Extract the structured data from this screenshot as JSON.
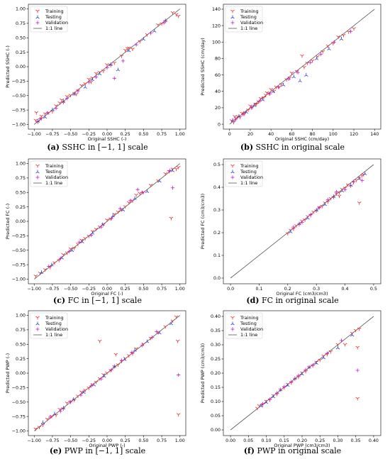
{
  "series_colors": {
    "Training": "#f0262a",
    "Testing": "#2d38d8",
    "Validation": "#c41ccc",
    "line": "#555555"
  },
  "captions": [
    {
      "letter": "(a)",
      "text": " SSHC in [−1, 1] scale"
    },
    {
      "letter": "(b)",
      "text": " SSHC in original scale"
    },
    {
      "letter": "(c)",
      "text": " FC in [−1, 1] scale"
    },
    {
      "letter": "(d)",
      "text": " FC in original scale"
    },
    {
      "letter": "(e)",
      "text": " PWP in [−1, 1] scale"
    },
    {
      "letter": "(f)",
      "text": " PWP in original scale"
    }
  ],
  "chart_data": [
    {
      "type": "scatter",
      "xlabel": "Original SSHC (-)",
      "ylabel": "Predicted SSHC (-)",
      "xlim": [
        -1.08,
        1.08
      ],
      "ylim": [
        -1.08,
        1.08
      ],
      "xticks": [
        -1.0,
        -0.75,
        -0.5,
        -0.25,
        0.0,
        0.25,
        0.5,
        0.75,
        1.0
      ],
      "yticks": [
        -1.0,
        -0.75,
        -0.5,
        -0.25,
        0.0,
        0.25,
        0.5,
        0.75,
        1.0
      ],
      "tick_decimals": 2,
      "legend": [
        "Training",
        "Testing",
        "Validation",
        "1:1 line"
      ],
      "legend_position": "top-left",
      "identity_line": [
        -1.0,
        1.0
      ],
      "series": [
        {
          "name": "Training",
          "x": [
            -0.98,
            -0.95,
            -0.9,
            -0.85,
            -0.8,
            -0.75,
            -0.7,
            -0.65,
            -0.6,
            -0.55,
            -0.5,
            -0.45,
            -0.4,
            -0.35,
            -0.3,
            -0.25,
            -0.2,
            -0.15,
            -0.1,
            -0.05,
            0.0,
            0.05,
            0.1,
            0.2,
            0.25,
            0.3,
            0.35,
            0.45,
            0.55,
            0.7,
            0.8,
            0.9,
            0.95,
            0.98,
            -0.97,
            -0.9,
            -0.62,
            -0.42,
            -0.22,
            0.28,
            0.75
          ],
          "y": [
            -0.93,
            -0.96,
            -0.9,
            -0.82,
            -0.8,
            -0.78,
            -0.68,
            -0.63,
            -0.62,
            -0.52,
            -0.5,
            -0.47,
            -0.42,
            -0.33,
            -0.3,
            -0.22,
            -0.2,
            -0.12,
            -0.1,
            -0.08,
            0.03,
            0.02,
            0.06,
            0.18,
            0.28,
            0.32,
            0.3,
            0.43,
            0.55,
            0.72,
            0.78,
            0.93,
            0.9,
            0.87,
            -0.8,
            -0.86,
            -0.58,
            -0.48,
            -0.27,
            0.31,
            0.74
          ]
        },
        {
          "name": "Testing",
          "x": [
            -0.95,
            -0.85,
            -0.75,
            -0.6,
            -0.45,
            -0.3,
            -0.2,
            -0.1,
            0.05,
            0.15,
            0.3,
            0.5,
            0.65,
            0.8
          ],
          "y": [
            -0.94,
            -0.87,
            -0.74,
            -0.6,
            -0.47,
            -0.35,
            -0.22,
            -0.12,
            0.04,
            -0.05,
            0.28,
            0.48,
            0.62,
            0.8
          ]
        },
        {
          "name": "Validation",
          "x": [
            -0.92,
            -0.82,
            -0.7,
            -0.55,
            -0.4,
            -0.25,
            -0.15,
            0.0,
            0.1,
            0.22,
            0.4,
            0.6,
            0.78
          ],
          "y": [
            -0.9,
            -0.8,
            -0.72,
            -0.55,
            -0.42,
            -0.27,
            -0.18,
            -0.02,
            -0.2,
            0.1,
            0.38,
            0.58,
            0.76
          ]
        }
      ]
    },
    {
      "type": "scatter",
      "xlabel": "Original SSHC (cm/day)",
      "ylabel": "Predicted SSHC (cm/day)",
      "xlim": [
        -6,
        146
      ],
      "ylim": [
        -6,
        146
      ],
      "xticks": [
        0,
        20,
        40,
        60,
        80,
        100,
        120,
        140
      ],
      "yticks": [
        0,
        20,
        40,
        60,
        80,
        100,
        120,
        140
      ],
      "tick_decimals": 0,
      "legend": [
        "Training",
        "Testing",
        "Validation",
        "1:1 line"
      ],
      "legend_position": "top-left",
      "identity_line": [
        0,
        140
      ],
      "series": [
        {
          "name": "Training",
          "x": [
            2,
            4,
            6,
            8,
            10,
            12,
            15,
            18,
            20,
            22,
            25,
            28,
            30,
            33,
            35,
            38,
            40,
            43,
            45,
            50,
            55,
            58,
            60,
            65,
            70,
            75,
            80,
            85,
            90,
            95,
            100,
            105,
            110,
            115,
            120,
            5,
            14,
            26,
            36,
            48,
            72
          ],
          "y": [
            4,
            2,
            7,
            9,
            8,
            13,
            14,
            17,
            22,
            20,
            24,
            27,
            31,
            32,
            35,
            37,
            42,
            40,
            45,
            48,
            54,
            56,
            62,
            64,
            83,
            74,
            77,
            82,
            88,
            95,
            98,
            106,
            108,
            112,
            116,
            9,
            12,
            24,
            38,
            45,
            69
          ]
        },
        {
          "name": "Testing",
          "x": [
            3,
            9,
            16,
            24,
            32,
            42,
            52,
            62,
            68,
            74,
            84,
            96,
            108
          ],
          "y": [
            5,
            10,
            15,
            23,
            30,
            40,
            48,
            58,
            53,
            60,
            80,
            92,
            104
          ]
        },
        {
          "name": "Validation",
          "x": [
            6,
            13,
            21,
            29,
            39,
            47,
            57,
            66,
            78,
            88,
            101,
            117
          ],
          "y": [
            6,
            12,
            20,
            28,
            37,
            45,
            55,
            63,
            75,
            85,
            100,
            113
          ]
        }
      ]
    },
    {
      "type": "scatter",
      "xlabel": "Original FC (-)",
      "ylabel": "Predicted FC (-)",
      "xlim": [
        -1.08,
        1.08
      ],
      "ylim": [
        -1.08,
        1.08
      ],
      "xticks": [
        -1.0,
        -0.75,
        -0.5,
        -0.25,
        0.0,
        0.25,
        0.5,
        0.75,
        1.0
      ],
      "yticks": [
        -1.0,
        -0.75,
        -0.5,
        -0.25,
        0.0,
        0.25,
        0.5,
        0.75,
        1.0
      ],
      "tick_decimals": 2,
      "legend": [
        "Training",
        "Testing",
        "Validation",
        "1:1 line"
      ],
      "legend_position": "top-left",
      "identity_line": [
        -1.0,
        1.0
      ],
      "series": [
        {
          "name": "Training",
          "x": [
            -0.98,
            -0.92,
            -0.85,
            -0.78,
            -0.72,
            -0.66,
            -0.6,
            -0.55,
            -0.5,
            -0.45,
            -0.4,
            -0.35,
            -0.3,
            -0.25,
            -0.2,
            -0.15,
            -0.1,
            -0.05,
            0.0,
            0.05,
            0.1,
            0.15,
            0.2,
            0.25,
            0.3,
            0.35,
            0.4,
            0.45,
            0.5,
            0.6,
            0.7,
            0.8,
            0.85,
            0.88,
            0.9,
            0.95,
            0.98
          ],
          "y": [
            -0.95,
            -0.9,
            -0.84,
            -0.8,
            -0.72,
            -0.68,
            -0.58,
            -0.55,
            -0.48,
            -0.47,
            -0.4,
            -0.33,
            -0.3,
            -0.26,
            -0.18,
            -0.14,
            -0.1,
            -0.06,
            0.02,
            0.04,
            0.12,
            0.16,
            0.2,
            0.25,
            0.32,
            0.35,
            0.45,
            0.48,
            0.5,
            0.62,
            0.7,
            0.82,
            0.86,
            0.05,
            0.9,
            0.9,
            0.93
          ]
        },
        {
          "name": "Testing",
          "x": [
            -0.9,
            -0.76,
            -0.62,
            -0.48,
            -0.34,
            -0.2,
            -0.06,
            0.08,
            0.22,
            0.38,
            0.55,
            0.72,
            0.9
          ],
          "y": [
            -0.88,
            -0.75,
            -0.63,
            -0.5,
            -0.35,
            -0.2,
            -0.05,
            0.1,
            0.2,
            0.4,
            0.52,
            0.7,
            0.88
          ]
        },
        {
          "name": "Validation",
          "x": [
            -0.8,
            -0.64,
            -0.52,
            -0.38,
            -0.22,
            -0.08,
            0.06,
            0.18,
            0.32,
            0.42,
            0.48,
            0.86,
            0.9
          ],
          "y": [
            -0.78,
            -0.64,
            -0.52,
            -0.36,
            -0.24,
            -0.1,
            0.05,
            0.22,
            0.36,
            0.55,
            0.5,
            0.88,
            0.58
          ]
        }
      ]
    },
    {
      "type": "scatter",
      "xlabel": "Original FC (cm3/cm3)",
      "ylabel": "Predicted FC (cm3/cm3)",
      "xlim": [
        -0.025,
        0.525
      ],
      "ylim": [
        -0.025,
        0.525
      ],
      "xticks": [
        0.0,
        0.1,
        0.2,
        0.3,
        0.4,
        0.5
      ],
      "yticks": [
        0.0,
        0.1,
        0.2,
        0.3,
        0.4,
        0.5
      ],
      "tick_decimals": 1,
      "legend": [
        "Training",
        "Testing",
        "Validation",
        "1:1 line"
      ],
      "legend_position": "top-left",
      "identity_line": [
        0.0,
        0.5
      ],
      "series": [
        {
          "name": "Training",
          "x": [
            0.2,
            0.21,
            0.22,
            0.23,
            0.24,
            0.25,
            0.26,
            0.27,
            0.28,
            0.29,
            0.3,
            0.31,
            0.32,
            0.33,
            0.34,
            0.35,
            0.36,
            0.37,
            0.38,
            0.39,
            0.4,
            0.41,
            0.42,
            0.43,
            0.44,
            0.45,
            0.46,
            0.465,
            0.45,
            0.38
          ],
          "y": [
            0.195,
            0.21,
            0.215,
            0.23,
            0.235,
            0.25,
            0.255,
            0.27,
            0.275,
            0.29,
            0.295,
            0.31,
            0.315,
            0.33,
            0.335,
            0.35,
            0.355,
            0.37,
            0.375,
            0.39,
            0.395,
            0.41,
            0.405,
            0.42,
            0.43,
            0.44,
            0.45,
            0.455,
            0.33,
            0.36
          ]
        },
        {
          "name": "Testing",
          "x": [
            0.21,
            0.24,
            0.27,
            0.3,
            0.33,
            0.36,
            0.39,
            0.42,
            0.45,
            0.47
          ],
          "y": [
            0.205,
            0.24,
            0.265,
            0.3,
            0.325,
            0.36,
            0.385,
            0.41,
            0.44,
            0.46
          ]
        },
        {
          "name": "Validation",
          "x": [
            0.22,
            0.25,
            0.28,
            0.31,
            0.34,
            0.37,
            0.4,
            0.43,
            0.46
          ],
          "y": [
            0.225,
            0.245,
            0.28,
            0.31,
            0.345,
            0.38,
            0.39,
            0.425,
            0.43
          ]
        }
      ]
    },
    {
      "type": "scatter",
      "xlabel": "Original PWP (-)",
      "ylabel": "Predicted PWP (-)",
      "xlim": [
        -1.08,
        1.08
      ],
      "ylim": [
        -1.08,
        1.08
      ],
      "xticks": [
        -1.0,
        -0.75,
        -0.5,
        -0.25,
        0.0,
        0.25,
        0.5,
        0.75,
        1.0
      ],
      "yticks": [
        -1.0,
        -0.75,
        -0.5,
        -0.25,
        0.0,
        0.25,
        0.5,
        0.75,
        1.0
      ],
      "tick_decimals": 2,
      "legend": [
        "Training",
        "Testing",
        "Validation",
        "1:1 line"
      ],
      "legend_position": "top-left",
      "identity_line": [
        -1.0,
        1.0
      ],
      "series": [
        {
          "name": "Training",
          "x": [
            -0.98,
            -0.93,
            -0.88,
            -0.82,
            -0.76,
            -0.7,
            -0.65,
            -0.6,
            -0.55,
            -0.5,
            -0.45,
            -0.4,
            -0.35,
            -0.3,
            -0.25,
            -0.2,
            -0.15,
            -0.1,
            -0.05,
            0.0,
            0.05,
            0.1,
            0.15,
            0.2,
            0.25,
            0.3,
            0.35,
            0.4,
            0.5,
            0.6,
            0.7,
            0.8,
            0.9,
            0.95,
            0.97,
            0.98,
            -0.1,
            0.12
          ],
          "y": [
            -0.97,
            -0.94,
            -0.9,
            -0.8,
            -0.75,
            -0.73,
            -0.63,
            -0.62,
            -0.52,
            -0.5,
            -0.47,
            -0.4,
            -0.33,
            -0.3,
            -0.26,
            -0.2,
            -0.16,
            -0.1,
            -0.03,
            0.0,
            0.04,
            0.11,
            0.14,
            0.2,
            0.25,
            0.3,
            0.33,
            0.42,
            0.5,
            0.6,
            0.7,
            0.8,
            0.9,
            0.97,
            0.55,
            -0.72,
            0.55,
            0.32
          ]
        },
        {
          "name": "Testing",
          "x": [
            -0.88,
            -0.72,
            -0.6,
            -0.46,
            -0.32,
            -0.18,
            -0.04,
            0.1,
            0.24,
            0.38,
            0.55,
            0.72,
            0.88
          ],
          "y": [
            -0.85,
            -0.7,
            -0.6,
            -0.45,
            -0.33,
            -0.2,
            -0.05,
            0.12,
            0.24,
            0.4,
            0.55,
            0.7,
            0.86
          ]
        },
        {
          "name": "Validation",
          "x": [
            -0.78,
            -0.64,
            -0.5,
            -0.36,
            -0.22,
            -0.08,
            0.06,
            0.2,
            0.34,
            0.48,
            0.62,
            0.68,
            0.98
          ],
          "y": [
            -0.76,
            -0.66,
            -0.5,
            -0.38,
            -0.22,
            -0.1,
            0.06,
            0.22,
            0.36,
            0.48,
            0.62,
            0.72,
            -0.03
          ]
        }
      ]
    },
    {
      "type": "scatter",
      "xlabel": "Original PWP (cm3/cm3)",
      "ylabel": "Predicted PWP (cm3/cm3)",
      "xlim": [
        -0.02,
        0.42
      ],
      "ylim": [
        -0.02,
        0.42
      ],
      "xticks": [
        0.0,
        0.05,
        0.1,
        0.15,
        0.2,
        0.25,
        0.3,
        0.35,
        0.4
      ],
      "yticks": [
        0.0,
        0.05,
        0.1,
        0.15,
        0.2,
        0.25,
        0.3,
        0.35,
        0.4
      ],
      "tick_decimals": 2,
      "legend": [
        "Training",
        "Testing",
        "Validation",
        "1:1 line"
      ],
      "legend_position": "top-left",
      "identity_line": [
        0.0,
        0.4
      ],
      "series": [
        {
          "name": "Training",
          "x": [
            0.075,
            0.08,
            0.09,
            0.1,
            0.11,
            0.12,
            0.13,
            0.14,
            0.15,
            0.16,
            0.17,
            0.18,
            0.19,
            0.2,
            0.21,
            0.22,
            0.23,
            0.24,
            0.25,
            0.26,
            0.27,
            0.28,
            0.3,
            0.32,
            0.34,
            0.35,
            0.355,
            0.355,
            0.36
          ],
          "y": [
            0.075,
            0.085,
            0.088,
            0.1,
            0.105,
            0.12,
            0.125,
            0.14,
            0.148,
            0.16,
            0.165,
            0.178,
            0.185,
            0.2,
            0.205,
            0.22,
            0.225,
            0.238,
            0.245,
            0.26,
            0.265,
            0.275,
            0.3,
            0.3,
            0.34,
            0.35,
            0.11,
            0.29,
            0.355
          ]
        },
        {
          "name": "Testing",
          "x": [
            0.085,
            0.1,
            0.12,
            0.14,
            0.16,
            0.18,
            0.2,
            0.22,
            0.24,
            0.26,
            0.3,
            0.34
          ],
          "y": [
            0.085,
            0.098,
            0.118,
            0.142,
            0.158,
            0.182,
            0.198,
            0.222,
            0.236,
            0.255,
            0.29,
            0.335
          ]
        },
        {
          "name": "Validation",
          "x": [
            0.09,
            0.11,
            0.13,
            0.15,
            0.17,
            0.19,
            0.21,
            0.23,
            0.27,
            0.31,
            0.355
          ],
          "y": [
            0.092,
            0.108,
            0.13,
            0.152,
            0.17,
            0.192,
            0.212,
            0.228,
            0.27,
            0.315,
            0.21
          ]
        }
      ]
    }
  ]
}
